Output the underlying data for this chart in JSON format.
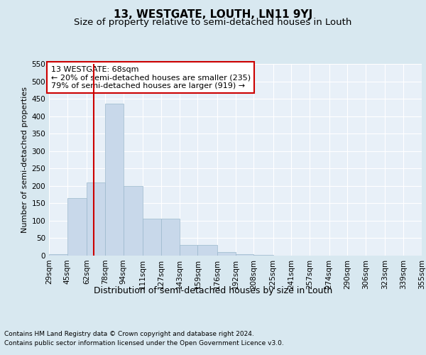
{
  "title": "13, WESTGATE, LOUTH, LN11 9YJ",
  "subtitle": "Size of property relative to semi-detached houses in Louth",
  "xlabel": "Distribution of semi-detached houses by size in Louth",
  "ylabel": "Number of semi-detached properties",
  "footer1": "Contains HM Land Registry data © Crown copyright and database right 2024.",
  "footer2": "Contains public sector information licensed under the Open Government Licence v3.0.",
  "annotation_line1": "13 WESTGATE: 68sqm",
  "annotation_line2": "← 20% of semi-detached houses are smaller (235)",
  "annotation_line3": "79% of semi-detached houses are larger (919) →",
  "property_size": 68,
  "bar_color": "#c8d8ea",
  "bar_edge_color": "#9ab8cc",
  "redline_color": "#cc0000",
  "annotation_box_color": "#cc0000",
  "bin_edges": [
    29,
    45,
    62,
    78,
    94,
    111,
    127,
    143,
    159,
    176,
    192,
    208,
    225,
    241,
    257,
    274,
    290,
    306,
    323,
    339,
    355
  ],
  "bar_heights": [
    5,
    165,
    210,
    435,
    200,
    105,
    105,
    30,
    30,
    10,
    5,
    2,
    1,
    0,
    0,
    1,
    0,
    0,
    1,
    0
  ],
  "ylim": [
    0,
    550
  ],
  "yticks": [
    0,
    50,
    100,
    150,
    200,
    250,
    300,
    350,
    400,
    450,
    500,
    550
  ],
  "background_color": "#d8e8f0",
  "plot_background_color": "#e8f0f8",
  "grid_color": "#ffffff",
  "title_fontsize": 11,
  "subtitle_fontsize": 9.5,
  "xlabel_fontsize": 9,
  "ylabel_fontsize": 8,
  "tick_fontsize": 7.5,
  "annotation_fontsize": 8,
  "footer_fontsize": 6.5
}
